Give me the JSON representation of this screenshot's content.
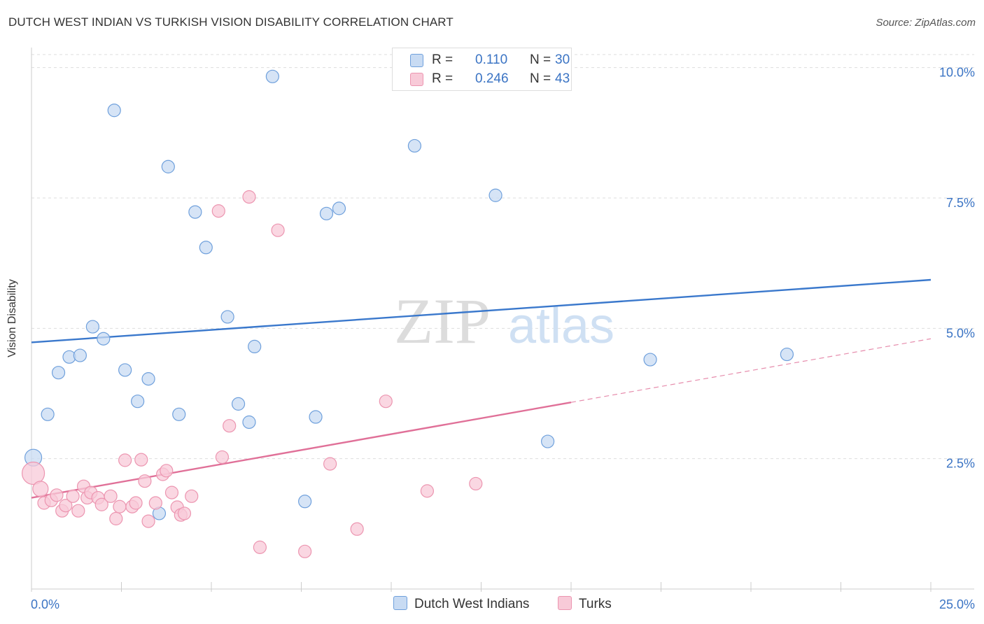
{
  "title": "DUTCH WEST INDIAN VS TURKISH VISION DISABILITY CORRELATION CHART",
  "source": "Source: ZipAtlas.com",
  "watermark": {
    "zip": "ZIP",
    "atlas": "atlas"
  },
  "legend_top": [
    {
      "r_label": "R =",
      "r_value": "0.110",
      "n_label": "N =",
      "n_value": "30"
    },
    {
      "r_label": "R =",
      "r_value": "0.246",
      "n_label": "N =",
      "n_value": "43"
    }
  ],
  "chart_data": {
    "type": "scatter",
    "title": "DUTCH WEST INDIAN VS TURKISH VISION DISABILITY CORRELATION CHART",
    "xlabel": "",
    "ylabel": "Vision Disability",
    "xlim": [
      0,
      25
    ],
    "ylim": [
      0,
      10.25
    ],
    "x_tick_labels": [
      {
        "value": 0,
        "label": "0.0%"
      },
      {
        "value": 25,
        "label": "25.0%"
      }
    ],
    "y_tick_labels": [
      {
        "value": 2.5,
        "label": "2.5%"
      },
      {
        "value": 5.0,
        "label": "5.0%"
      },
      {
        "value": 7.5,
        "label": "7.5%"
      },
      {
        "value": 10.0,
        "label": "10.0%"
      }
    ],
    "grid": true,
    "legend_position": "bottom",
    "series": [
      {
        "name": "Dutch West Indians",
        "color": "#6fa0dc",
        "fill": "#c8dbf3",
        "line_color": "#3a78cc",
        "trend": {
          "x0": 0,
          "y0": 4.73,
          "x1": 25,
          "y1": 5.93,
          "dashed_from": null
        },
        "points": [
          [
            0.05,
            2.52,
            12
          ],
          [
            0.45,
            3.35,
            9
          ],
          [
            0.75,
            4.15,
            9
          ],
          [
            1.05,
            4.45,
            9
          ],
          [
            1.35,
            4.48,
            9
          ],
          [
            1.7,
            5.03,
            9
          ],
          [
            2.0,
            4.8,
            9
          ],
          [
            2.3,
            9.18,
            9
          ],
          [
            2.6,
            4.2,
            9
          ],
          [
            2.95,
            3.6,
            9
          ],
          [
            3.25,
            4.03,
            9
          ],
          [
            3.55,
            1.45,
            9
          ],
          [
            3.8,
            8.1,
            9
          ],
          [
            4.1,
            3.35,
            9
          ],
          [
            4.55,
            7.23,
            9
          ],
          [
            4.85,
            6.55,
            9
          ],
          [
            5.45,
            5.22,
            9
          ],
          [
            5.75,
            3.55,
            9
          ],
          [
            6.05,
            3.2,
            9
          ],
          [
            6.2,
            4.65,
            9
          ],
          [
            6.7,
            9.83,
            9
          ],
          [
            7.6,
            1.68,
            9
          ],
          [
            7.9,
            3.3,
            9
          ],
          [
            8.2,
            7.2,
            9
          ],
          [
            8.55,
            7.3,
            9
          ],
          [
            10.65,
            8.5,
            9
          ],
          [
            12.9,
            7.55,
            9
          ],
          [
            14.35,
            2.83,
            9
          ],
          [
            17.2,
            4.4,
            9
          ],
          [
            21.0,
            4.5,
            9
          ]
        ]
      },
      {
        "name": "Turks",
        "color": "#ec95b0",
        "fill": "#f8cad8",
        "line_color": "#e07098",
        "trend": {
          "x0": 0,
          "y0": 1.75,
          "x1": 25,
          "y1": 4.8,
          "solid_until": 15
        },
        "points": [
          [
            0.05,
            2.22,
            16
          ],
          [
            0.25,
            1.92,
            11
          ],
          [
            0.35,
            1.65,
            9
          ],
          [
            0.55,
            1.7,
            9
          ],
          [
            0.7,
            1.8,
            9
          ],
          [
            0.85,
            1.5,
            9
          ],
          [
            0.95,
            1.6,
            9
          ],
          [
            1.15,
            1.78,
            9
          ],
          [
            1.3,
            1.5,
            9
          ],
          [
            1.45,
            1.97,
            9
          ],
          [
            1.55,
            1.75,
            9
          ],
          [
            1.65,
            1.85,
            9
          ],
          [
            1.85,
            1.75,
            9
          ],
          [
            1.95,
            1.62,
            9
          ],
          [
            2.2,
            1.78,
            9
          ],
          [
            2.35,
            1.35,
            9
          ],
          [
            2.45,
            1.58,
            9
          ],
          [
            2.6,
            2.47,
            9
          ],
          [
            2.8,
            1.58,
            9
          ],
          [
            2.9,
            1.65,
            9
          ],
          [
            3.05,
            2.48,
            9
          ],
          [
            3.15,
            2.07,
            9
          ],
          [
            3.25,
            1.3,
            9
          ],
          [
            3.45,
            1.65,
            9
          ],
          [
            3.65,
            2.2,
            9
          ],
          [
            3.75,
            2.27,
            9
          ],
          [
            3.9,
            1.85,
            9
          ],
          [
            4.05,
            1.57,
            9
          ],
          [
            4.15,
            1.42,
            9
          ],
          [
            4.25,
            1.45,
            9
          ],
          [
            4.45,
            1.78,
            9
          ],
          [
            5.2,
            7.25,
            9
          ],
          [
            5.3,
            2.53,
            9
          ],
          [
            5.5,
            3.13,
            9
          ],
          [
            6.05,
            7.52,
            9
          ],
          [
            6.35,
            0.8,
            9
          ],
          [
            6.85,
            6.88,
            9
          ],
          [
            7.6,
            0.72,
            9
          ],
          [
            8.3,
            2.4,
            9
          ],
          [
            9.05,
            1.15,
            9
          ],
          [
            9.85,
            3.6,
            9
          ],
          [
            11.0,
            1.88,
            9
          ],
          [
            12.35,
            2.02,
            9
          ]
        ]
      }
    ]
  }
}
